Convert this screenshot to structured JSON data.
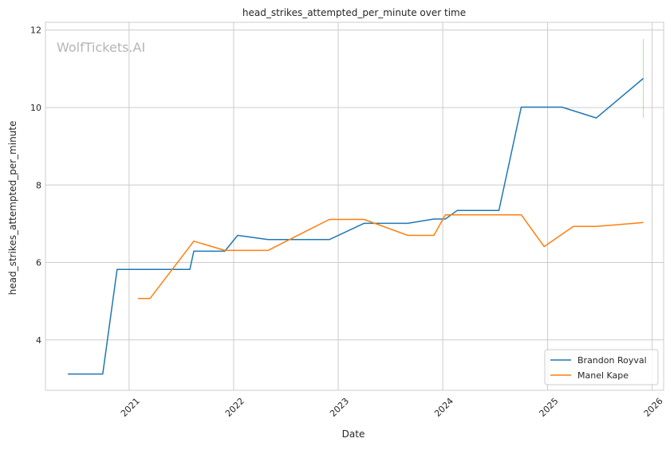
{
  "chart_data": {
    "type": "line",
    "title": "head_strikes_attempted_per_minute over time",
    "xlabel": "Date",
    "ylabel": "head_strikes_attempted_per_minute",
    "watermark": "WolfTickets.AI",
    "x_ticks": [
      "2021",
      "2022",
      "2023",
      "2024",
      "2025",
      "2026"
    ],
    "y_ticks": [
      "4",
      "6",
      "8",
      "10",
      "12"
    ],
    "xlim": [
      "2020-03-15",
      "2026-02-10"
    ],
    "ylim": [
      2.7,
      12.2
    ],
    "grid": true,
    "legend_position": "lower-right",
    "series": [
      {
        "name": "Brandon Royval",
        "color": "#1f77b4",
        "points": [
          [
            "2020-06-01",
            3.12
          ],
          [
            "2020-10-01",
            3.12
          ],
          [
            "2020-11-20",
            5.82
          ],
          [
            "2021-08-01",
            5.82
          ],
          [
            "2021-08-15",
            6.29
          ],
          [
            "2021-12-01",
            6.29
          ],
          [
            "2022-01-15",
            6.7
          ],
          [
            "2022-05-01",
            6.59
          ],
          [
            "2022-12-01",
            6.59
          ],
          [
            "2023-04-01",
            7.01
          ],
          [
            "2023-09-01",
            7.01
          ],
          [
            "2023-12-01",
            7.12
          ],
          [
            "2024-01-10",
            7.12
          ],
          [
            "2024-02-20",
            7.34
          ],
          [
            "2024-07-15",
            7.34
          ],
          [
            "2024-10-01",
            10.01
          ],
          [
            "2025-02-20",
            10.01
          ],
          [
            "2025-06-20",
            9.73
          ],
          [
            "2025-12-01",
            10.75
          ]
        ],
        "error_bar": {
          "x": "2025-12-01",
          "low": 9.73,
          "high": 11.77
        }
      },
      {
        "name": "Manel Kape",
        "color": "#ff7f0e",
        "points": [
          [
            "2021-02-01",
            5.07
          ],
          [
            "2021-03-15",
            5.07
          ],
          [
            "2021-08-15",
            6.55
          ],
          [
            "2021-12-01",
            6.31
          ],
          [
            "2022-05-01",
            6.31
          ],
          [
            "2022-12-01",
            7.11
          ],
          [
            "2023-04-01",
            7.11
          ],
          [
            "2023-09-01",
            6.7
          ],
          [
            "2023-12-01",
            6.7
          ],
          [
            "2024-01-10",
            7.23
          ],
          [
            "2024-10-01",
            7.23
          ],
          [
            "2024-12-20",
            6.41
          ],
          [
            "2025-04-01",
            6.93
          ],
          [
            "2025-06-20",
            6.93
          ],
          [
            "2025-12-01",
            7.03
          ]
        ]
      }
    ]
  }
}
